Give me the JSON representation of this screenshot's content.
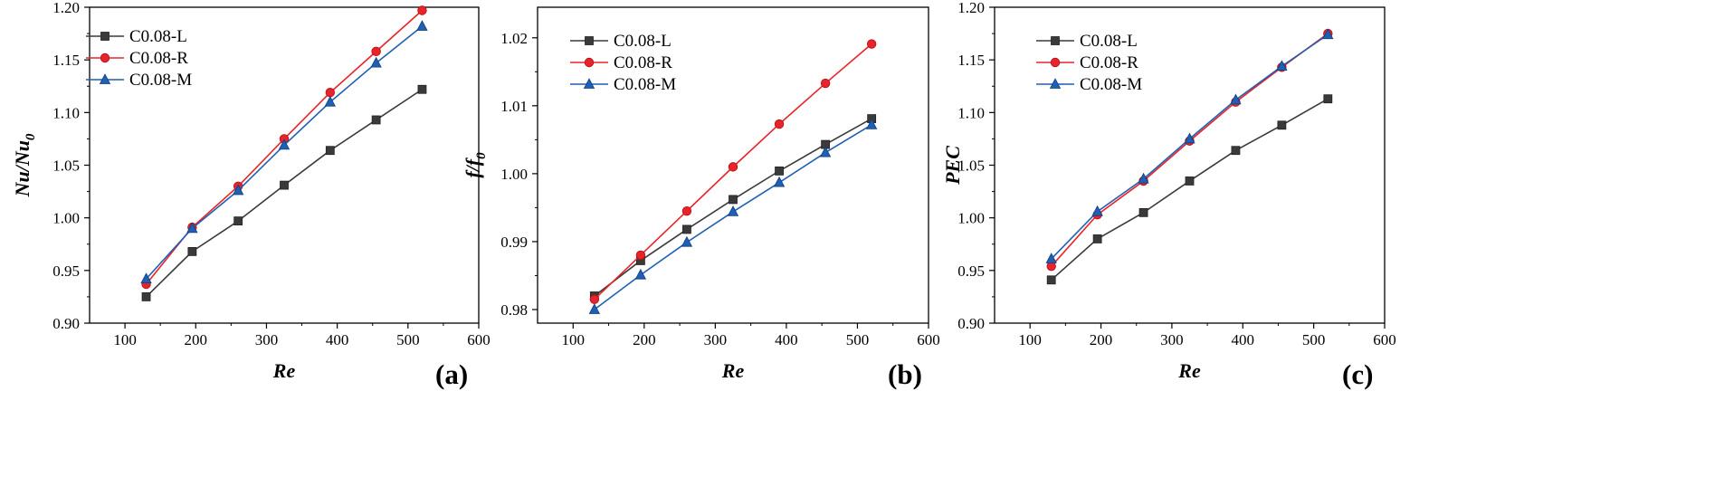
{
  "legend_labels": [
    "C0.08-L",
    "C0.08-R",
    "C0.08-M"
  ],
  "series_colors": [
    "#3a3a3a",
    "#e8232a",
    "#1f5fb4"
  ],
  "series_markers": [
    "square",
    "circle",
    "triangle"
  ],
  "chart_data": [
    {
      "type": "line",
      "panel_label": "(a)",
      "xlabel": "Re",
      "ylabel_parts": {
        "main": "Nu/Nu",
        "sub": "0"
      },
      "xlim": [
        50,
        600
      ],
      "ylim": [
        0.9,
        1.2
      ],
      "xticks": [
        100,
        200,
        300,
        400,
        500,
        600
      ],
      "xtick_labels": [
        "100",
        "200",
        "300",
        "400",
        "500",
        "600"
      ],
      "yticks": [
        0.9,
        0.95,
        1.0,
        1.05,
        1.1,
        1.15,
        1.2
      ],
      "ytick_labels": [
        "0.90",
        "0.95",
        "1.00",
        "1.05",
        "1.10",
        "1.15",
        "1.20"
      ],
      "x": [
        130,
        195,
        260,
        325,
        390,
        455,
        520
      ],
      "series": [
        {
          "name": "C0.08-L",
          "values": [
            0.925,
            0.968,
            0.997,
            1.031,
            1.064,
            1.093,
            1.122
          ]
        },
        {
          "name": "C0.08-R",
          "values": [
            0.937,
            0.991,
            1.03,
            1.075,
            1.119,
            1.158,
            1.197
          ]
        },
        {
          "name": "C0.08-M",
          "values": [
            0.942,
            0.99,
            1.026,
            1.069,
            1.11,
            1.147,
            1.182
          ]
        }
      ]
    },
    {
      "type": "line",
      "panel_label": "(b)",
      "xlabel": "Re",
      "ylabel_parts": {
        "main": "f/f",
        "sub": "0"
      },
      "xlim": [
        50,
        600
      ],
      "ylim": [
        0.978,
        1.0245
      ],
      "xticks": [
        100,
        200,
        300,
        400,
        500,
        600
      ],
      "xtick_labels": [
        "100",
        "200",
        "300",
        "400",
        "500",
        "600"
      ],
      "yticks": [
        0.98,
        0.99,
        1.0,
        1.01,
        1.02
      ],
      "ytick_labels": [
        "0.98",
        "0.99",
        "1.00",
        "1.01",
        "1.02"
      ],
      "x": [
        130,
        195,
        260,
        325,
        390,
        455,
        520
      ],
      "series": [
        {
          "name": "C0.08-L",
          "values": [
            0.982,
            0.9872,
            0.9918,
            0.9962,
            1.0004,
            1.0043,
            1.0081
          ]
        },
        {
          "name": "C0.08-R",
          "values": [
            0.9815,
            0.988,
            0.9945,
            1.001,
            1.0073,
            1.0133,
            1.0191
          ]
        },
        {
          "name": "C0.08-M",
          "values": [
            0.98,
            0.9851,
            0.9899,
            0.9944,
            0.9987,
            1.0031,
            1.0072
          ]
        }
      ]
    },
    {
      "type": "line",
      "panel_label": "(c)",
      "xlabel": "Re",
      "ylabel_parts": {
        "main": "PEC",
        "sub": ""
      },
      "xlim": [
        50,
        600
      ],
      "ylim": [
        0.9,
        1.2
      ],
      "xticks": [
        100,
        200,
        300,
        400,
        500,
        600
      ],
      "xtick_labels": [
        "100",
        "200",
        "300",
        "400",
        "500",
        "600"
      ],
      "yticks": [
        0.9,
        0.95,
        1.0,
        1.05,
        1.1,
        1.15,
        1.2
      ],
      "ytick_labels": [
        "0.90",
        "0.95",
        "1.00",
        "1.05",
        "1.10",
        "1.15",
        "1.20"
      ],
      "x": [
        130,
        195,
        260,
        325,
        390,
        455,
        520
      ],
      "series": [
        {
          "name": "C0.08-L",
          "values": [
            0.941,
            0.98,
            1.005,
            1.035,
            1.064,
            1.088,
            1.113
          ]
        },
        {
          "name": "C0.08-R",
          "values": [
            0.954,
            1.003,
            1.035,
            1.073,
            1.11,
            1.143,
            1.175
          ]
        },
        {
          "name": "C0.08-M",
          "values": [
            0.961,
            1.006,
            1.037,
            1.075,
            1.112,
            1.144,
            1.174
          ]
        }
      ]
    }
  ]
}
